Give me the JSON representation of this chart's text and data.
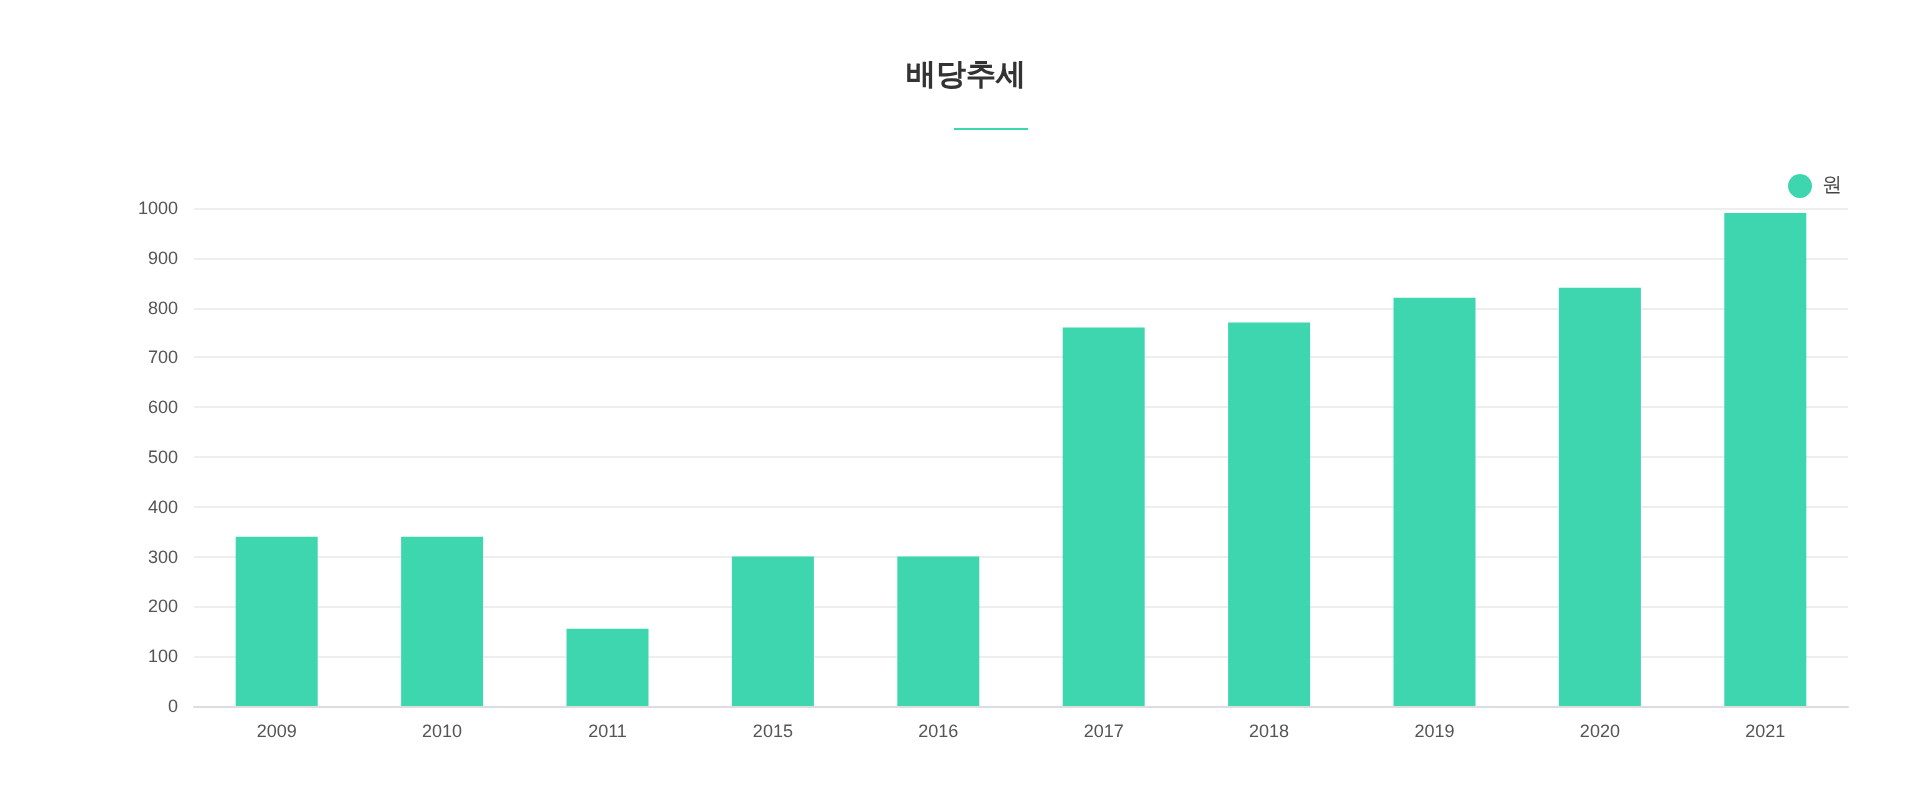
{
  "chart_data": {
    "type": "bar",
    "title": "배당추세",
    "categories": [
      "2009",
      "2010",
      "2011",
      "2015",
      "2016",
      "2017",
      "2018",
      "2019",
      "2020",
      "2021"
    ],
    "series": [
      {
        "name": "원",
        "color": "#3dd6ae",
        "values": [
          340,
          340,
          155,
          300,
          300,
          760,
          770,
          820,
          840,
          990
        ]
      }
    ],
    "ylim": [
      0,
      1000
    ],
    "yticks": [
      0,
      100,
      200,
      300,
      400,
      500,
      600,
      700,
      800,
      900,
      1000
    ],
    "grid": "y",
    "legend": "top right"
  }
}
